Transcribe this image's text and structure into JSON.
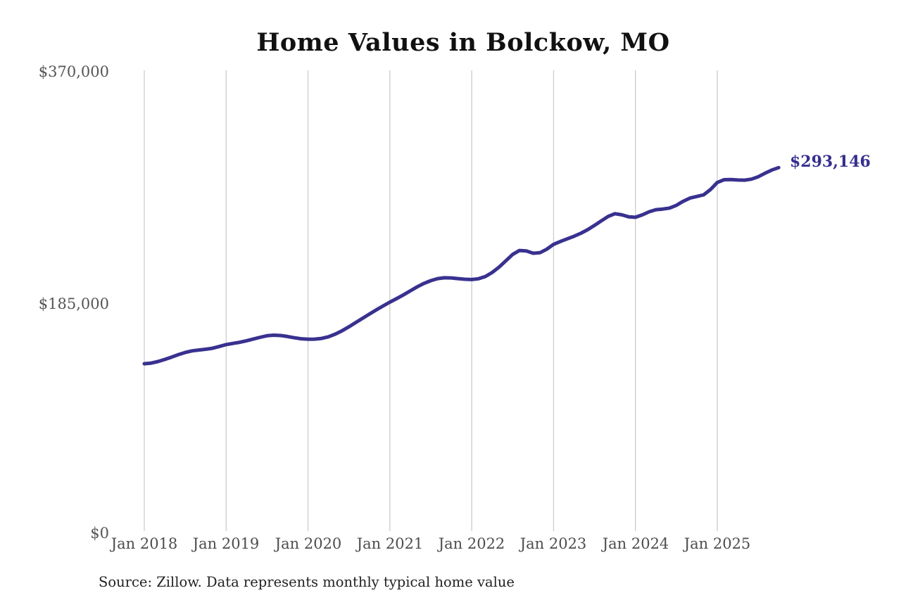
{
  "title": "Home Values in Bolckow, MO",
  "source_note": "Source: Zillow. Data represents monthly typical home value",
  "colors": {
    "line": "#39318f",
    "grid": "#cccccc",
    "axis_text": "#555555",
    "title_text": "#111111",
    "end_label_text": "#352f8e",
    "background": "#ffffff"
  },
  "chart_data": {
    "type": "line",
    "title": "Home Values in Bolckow, MO",
    "xlabel": "",
    "ylabel": "",
    "grid": "vertical-only",
    "legend": "none",
    "ylim": [
      0,
      370000
    ],
    "y_tick_labels": [
      "$370,000",
      "$185,000",
      "$0"
    ],
    "y_tick_values": [
      370000,
      185000,
      0
    ],
    "x_tick_labels": [
      "Jan 2018",
      "Jan 2019",
      "Jan 2020",
      "Jan 2021",
      "Jan 2022",
      "Jan 2023",
      "Jan 2024",
      "Jan 2025"
    ],
    "last_value_label": "$293,146",
    "last_value": 293146,
    "x": [
      "2018-01",
      "2018-02",
      "2018-03",
      "2018-04",
      "2018-05",
      "2018-06",
      "2018-07",
      "2018-08",
      "2018-09",
      "2018-10",
      "2018-11",
      "2018-12",
      "2019-01",
      "2019-02",
      "2019-03",
      "2019-04",
      "2019-05",
      "2019-06",
      "2019-07",
      "2019-08",
      "2019-09",
      "2019-10",
      "2019-11",
      "2019-12",
      "2020-01",
      "2020-02",
      "2020-03",
      "2020-04",
      "2020-05",
      "2020-06",
      "2020-07",
      "2020-08",
      "2020-09",
      "2020-10",
      "2020-11",
      "2020-12",
      "2021-01",
      "2021-02",
      "2021-03",
      "2021-04",
      "2021-05",
      "2021-06",
      "2021-07",
      "2021-08",
      "2021-09",
      "2021-10",
      "2021-11",
      "2021-12",
      "2022-01",
      "2022-02",
      "2022-03",
      "2022-04",
      "2022-05",
      "2022-06",
      "2022-07",
      "2022-08",
      "2022-09",
      "2022-10",
      "2022-11",
      "2022-12",
      "2023-01",
      "2023-02",
      "2023-03",
      "2023-04",
      "2023-05",
      "2023-06",
      "2023-07",
      "2023-08",
      "2023-09",
      "2023-10",
      "2023-11",
      "2023-12",
      "2024-01",
      "2024-02",
      "2024-03",
      "2024-04",
      "2024-05",
      "2024-06",
      "2024-07",
      "2024-08",
      "2024-09",
      "2024-10",
      "2024-11",
      "2024-12",
      "2025-01",
      "2025-02",
      "2025-03",
      "2025-04",
      "2025-05",
      "2025-06",
      "2025-07",
      "2025-08",
      "2025-09",
      "2025-10"
    ],
    "values": [
      135900,
      136400,
      137600,
      139300,
      141200,
      143200,
      144900,
      146200,
      146900,
      147500,
      148300,
      149700,
      151200,
      152200,
      153100,
      154300,
      155700,
      157100,
      158300,
      158800,
      158500,
      157700,
      156700,
      155900,
      155500,
      155600,
      156200,
      157500,
      159600,
      162300,
      165500,
      168900,
      172300,
      175700,
      179000,
      182200,
      185300,
      188100,
      191100,
      194300,
      197500,
      200300,
      202500,
      204100,
      204800,
      204700,
      204100,
      203600,
      203400,
      204000,
      205800,
      209000,
      213300,
      218400,
      223500,
      226700,
      226300,
      224500,
      224900,
      227700,
      231600,
      233900,
      236000,
      238100,
      240500,
      243400,
      246800,
      250500,
      254000,
      256200,
      255300,
      253700,
      253300,
      255200,
      257700,
      259400,
      259900,
      260700,
      262900,
      266100,
      268700,
      270000,
      271300,
      275500,
      281200,
      283400,
      283600,
      283200,
      283100,
      283900,
      285800,
      288600,
      291200,
      293146
    ]
  }
}
